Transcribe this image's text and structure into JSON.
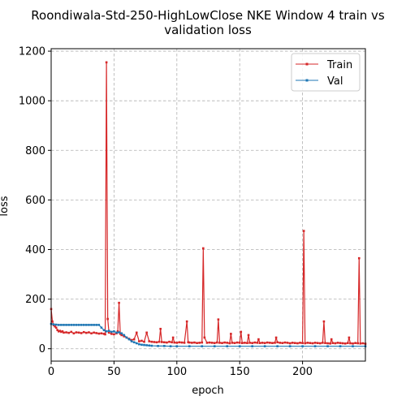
{
  "chart_data": {
    "type": "line",
    "title_line1": "Roondiwala-Std-250-HighLowClose NKE Window 4 train vs",
    "title_line2": "validation loss",
    "xlabel": "epoch",
    "ylabel": "loss",
    "xlim": [
      0,
      250
    ],
    "ylim": [
      -50,
      1210
    ],
    "xticks": [
      0,
      50,
      100,
      150,
      200
    ],
    "yticks": [
      0,
      200,
      400,
      600,
      800,
      1000,
      1200
    ],
    "grid": true,
    "legend_position": "top-right",
    "series": [
      {
        "name": "Train",
        "color": "#d62728",
        "x": [
          0,
          1,
          2,
          3,
          4,
          5,
          6,
          7,
          8,
          9,
          10,
          12,
          14,
          16,
          18,
          20,
          22,
          24,
          26,
          28,
          30,
          32,
          34,
          36,
          38,
          40,
          42,
          43,
          44,
          45,
          46,
          48,
          50,
          52,
          53,
          54,
          55,
          56,
          58,
          60,
          62,
          64,
          66,
          68,
          70,
          72,
          74,
          76,
          78,
          80,
          82,
          84,
          86,
          87,
          88,
          90,
          92,
          94,
          96,
          97,
          98,
          100,
          102,
          104,
          106,
          108,
          109,
          110,
          112,
          114,
          116,
          118,
          120,
          121,
          122,
          124,
          126,
          128,
          130,
          132,
          133,
          134,
          136,
          138,
          140,
          142,
          143,
          144,
          146,
          148,
          150,
          151,
          152,
          154,
          156,
          157,
          158,
          160,
          162,
          164,
          165,
          166,
          168,
          170,
          172,
          174,
          176,
          178,
          179,
          180,
          182,
          184,
          186,
          188,
          190,
          192,
          194,
          196,
          198,
          200,
          201,
          202,
          204,
          206,
          208,
          210,
          212,
          214,
          216,
          217,
          218,
          220,
          222,
          223,
          224,
          226,
          228,
          230,
          232,
          234,
          236,
          237,
          238,
          240,
          242,
          244,
          245,
          246,
          248,
          250
        ],
        "y": [
          160,
          110,
          95,
          90,
          85,
          75,
          70,
          72,
          68,
          70,
          65,
          66,
          64,
          68,
          62,
          66,
          65,
          63,
          67,
          64,
          66,
          62,
          65,
          63,
          61,
          62,
          60,
          58,
          1155,
          120,
          65,
          60,
          58,
          62,
          70,
          185,
          60,
          55,
          50,
          45,
          40,
          35,
          38,
          65,
          30,
          32,
          28,
          65,
          30,
          28,
          27,
          26,
          28,
          80,
          27,
          26,
          25,
          28,
          26,
          45,
          25,
          24,
          26,
          25,
          24,
          110,
          26,
          25,
          24,
          25,
          23,
          24,
          25,
          405,
          45,
          24,
          25,
          24,
          23,
          25,
          118,
          24,
          23,
          25,
          24,
          22,
          60,
          24,
          23,
          25,
          24,
          68,
          23,
          24,
          23,
          55,
          24,
          23,
          25,
          24,
          38,
          23,
          24,
          23,
          25,
          24,
          23,
          24,
          45,
          26,
          24,
          23,
          25,
          24,
          22,
          24,
          23,
          22,
          24,
          23,
          475,
          22,
          24,
          23,
          22,
          24,
          23,
          22,
          24,
          110,
          23,
          22,
          21,
          38,
          23,
          22,
          24,
          23,
          22,
          21,
          23,
          45,
          22,
          21,
          23,
          22,
          365,
          21,
          22,
          20
        ]
      },
      {
        "name": "Val",
        "color": "#1f77b4",
        "x": [
          0,
          2,
          4,
          6,
          8,
          10,
          12,
          14,
          16,
          18,
          20,
          22,
          24,
          26,
          28,
          30,
          32,
          34,
          36,
          38,
          40,
          42,
          44,
          46,
          48,
          50,
          52,
          54,
          56,
          58,
          60,
          62,
          64,
          66,
          68,
          70,
          72,
          74,
          76,
          78,
          80,
          85,
          90,
          95,
          100,
          110,
          120,
          130,
          140,
          150,
          160,
          170,
          180,
          190,
          200,
          210,
          220,
          230,
          240,
          250
        ],
        "y": [
          100,
          98,
          97,
          96,
          96,
          96,
          96,
          96,
          96,
          96,
          96,
          96,
          96,
          96,
          96,
          96,
          96,
          96,
          96,
          96,
          85,
          75,
          70,
          72,
          68,
          70,
          65,
          66,
          62,
          55,
          45,
          38,
          30,
          26,
          22,
          18,
          16,
          15,
          14,
          13,
          12,
          11,
          11,
          10,
          10,
          10,
          10,
          10,
          10,
          10,
          10,
          10,
          10,
          10,
          10,
          10,
          10,
          10,
          10,
          10
        ]
      }
    ]
  }
}
